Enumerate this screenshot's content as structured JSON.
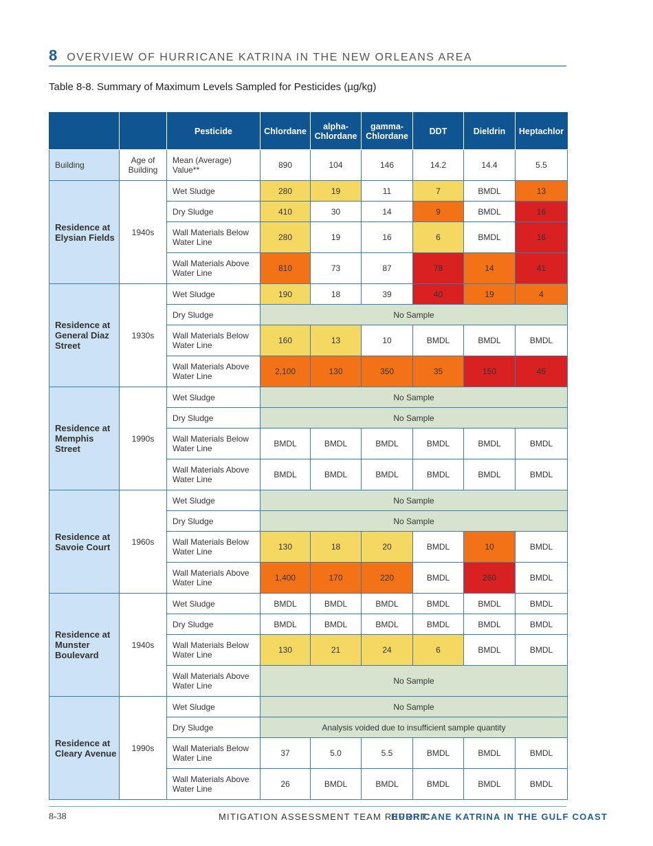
{
  "header": {
    "chapter": "8",
    "title": "OVERVIEW OF HURRICANE KATRINA IN THE NEW ORLEANS AREA"
  },
  "table_title": "Table 8-8. Summary of Maximum Levels Sampled for Pesticides (µg/kg)",
  "colors": {
    "y": "#f4d862",
    "o": "#f47216",
    "r": "#d92121",
    "w": "#ffffff",
    "n": "#d6e4cf",
    "header": "#0f5591",
    "site": "#cce2f5"
  },
  "columns": [
    "",
    "",
    "Pesticide",
    "Chlordane",
    "alpha-Chlordane",
    "gamma-Chlordane",
    "DDT",
    "Dieldrin",
    "Heptachlor"
  ],
  "mean_row": {
    "building": "Building",
    "age": "Age of Building",
    "label": "Mean (Average) Value**",
    "values": [
      "890",
      "104",
      "146",
      "14.2",
      "14.4",
      "5.5"
    ]
  },
  "groups": [
    {
      "site": "Residence at Elysian Fields",
      "age": "1940s",
      "rows": [
        {
          "p": "Wet Sludge",
          "t": false,
          "cells": [
            [
              "280",
              "y"
            ],
            [
              "19",
              "y"
            ],
            [
              "11",
              "w"
            ],
            [
              "7",
              "y"
            ],
            [
              "BMDL",
              "w"
            ],
            [
              "13",
              "o"
            ]
          ]
        },
        {
          "p": "Dry Sludge",
          "t": false,
          "cells": [
            [
              "410",
              "y"
            ],
            [
              "30",
              "w"
            ],
            [
              "14",
              "w"
            ],
            [
              "9",
              "o"
            ],
            [
              "BMDL",
              "w"
            ],
            [
              "16",
              "r"
            ]
          ]
        },
        {
          "p": "Wall Materials Below Water Line",
          "t": true,
          "cells": [
            [
              "280",
              "y"
            ],
            [
              "19",
              "w"
            ],
            [
              "16",
              "w"
            ],
            [
              "6",
              "y"
            ],
            [
              "BMDL",
              "w"
            ],
            [
              "16",
              "r"
            ]
          ]
        },
        {
          "p": "Wall Materials Above Water Line",
          "t": true,
          "cells": [
            [
              "810",
              "o"
            ],
            [
              "73",
              "w"
            ],
            [
              "87",
              "w"
            ],
            [
              "78",
              "r"
            ],
            [
              "14",
              "o"
            ],
            [
              "41",
              "r"
            ]
          ]
        }
      ]
    },
    {
      "site": "Residence at General Diaz Street",
      "age": "1930s",
      "rows": [
        {
          "p": "Wet Sludge",
          "t": false,
          "cells": [
            [
              "190",
              "y"
            ],
            [
              "18",
              "w"
            ],
            [
              "39",
              "w"
            ],
            [
              "40",
              "r"
            ],
            [
              "19",
              "o"
            ],
            [
              "4",
              "o"
            ]
          ]
        },
        {
          "p": "Dry Sludge",
          "t": false,
          "span": "No Sample"
        },
        {
          "p": "Wall Materials Below Water Line",
          "t": true,
          "cells": [
            [
              "160",
              "y"
            ],
            [
              "13",
              "y"
            ],
            [
              "10",
              "w"
            ],
            [
              "BMDL",
              "w"
            ],
            [
              "BMDL",
              "w"
            ],
            [
              "BMDL",
              "w"
            ]
          ]
        },
        {
          "p": "Wall Materials Above Water Line",
          "t": true,
          "cells": [
            [
              "2,100",
              "o"
            ],
            [
              "130",
              "o"
            ],
            [
              "350",
              "o"
            ],
            [
              "35",
              "o"
            ],
            [
              "150",
              "r"
            ],
            [
              "45",
              "r"
            ]
          ]
        }
      ]
    },
    {
      "site": "Residence at Memphis Street",
      "age": "1990s",
      "rows": [
        {
          "p": "Wet Sludge",
          "t": false,
          "span": "No Sample"
        },
        {
          "p": "Dry Sludge",
          "t": false,
          "span": "No Sample"
        },
        {
          "p": "Wall Materials Below Water Line",
          "t": true,
          "cells": [
            [
              "BMDL",
              "w"
            ],
            [
              "BMDL",
              "w"
            ],
            [
              "BMDL",
              "w"
            ],
            [
              "BMDL",
              "w"
            ],
            [
              "BMDL",
              "w"
            ],
            [
              "BMDL",
              "w"
            ]
          ]
        },
        {
          "p": "Wall Materials Above Water Line",
          "t": true,
          "cells": [
            [
              "BMDL",
              "w"
            ],
            [
              "BMDL",
              "w"
            ],
            [
              "BMDL",
              "w"
            ],
            [
              "BMDL",
              "w"
            ],
            [
              "BMDL",
              "w"
            ],
            [
              "BMDL",
              "w"
            ]
          ]
        }
      ]
    },
    {
      "site": "Residence at Savoie Court",
      "age": "1960s",
      "rows": [
        {
          "p": "Wet Sludge",
          "t": false,
          "span": "No Sample"
        },
        {
          "p": "Dry Sludge",
          "t": false,
          "span": "No Sample"
        },
        {
          "p": "Wall Materials Below Water Line",
          "t": true,
          "cells": [
            [
              "130",
              "y"
            ],
            [
              "18",
              "y"
            ],
            [
              "20",
              "y"
            ],
            [
              "BMDL",
              "w"
            ],
            [
              "10",
              "o"
            ],
            [
              "BMDL",
              "w"
            ]
          ]
        },
        {
          "p": "Wall Materials Above Water Line",
          "t": true,
          "cells": [
            [
              "1,400",
              "o"
            ],
            [
              "170",
              "o"
            ],
            [
              "220",
              "o"
            ],
            [
              "BMDL",
              "w"
            ],
            [
              "260",
              "r"
            ],
            [
              "BMDL",
              "w"
            ]
          ]
        }
      ]
    },
    {
      "site": "Residence at Munster Boulevard",
      "age": "1940s",
      "rows": [
        {
          "p": "Wet Sludge",
          "t": false,
          "cells": [
            [
              "BMDL",
              "w"
            ],
            [
              "BMDL",
              "w"
            ],
            [
              "BMDL",
              "w"
            ],
            [
              "BMDL",
              "w"
            ],
            [
              "BMDL",
              "w"
            ],
            [
              "BMDL",
              "w"
            ]
          ]
        },
        {
          "p": "Dry Sludge",
          "t": false,
          "cells": [
            [
              "BMDL",
              "w"
            ],
            [
              "BMDL",
              "w"
            ],
            [
              "BMDL",
              "w"
            ],
            [
              "BMDL",
              "w"
            ],
            [
              "BMDL",
              "w"
            ],
            [
              "BMDL",
              "w"
            ]
          ]
        },
        {
          "p": "Wall Materials Below Water Line",
          "t": true,
          "cells": [
            [
              "130",
              "y"
            ],
            [
              "21",
              "y"
            ],
            [
              "24",
              "y"
            ],
            [
              "6",
              "y"
            ],
            [
              "BMDL",
              "w"
            ],
            [
              "BMDL",
              "w"
            ]
          ]
        },
        {
          "p": "Wall Materials Above Water Line",
          "t": true,
          "span": "No Sample"
        }
      ]
    },
    {
      "site": "Residence at Cleary Avenue",
      "age": "1990s",
      "rows": [
        {
          "p": "Wet Sludge",
          "t": false,
          "span": "No Sample"
        },
        {
          "p": "Dry Sludge",
          "t": false,
          "span": "Analysis voided due to insufficient sample quantity"
        },
        {
          "p": "Wall Materials Below Water Line",
          "t": true,
          "cells": [
            [
              "37",
              "w"
            ],
            [
              "5.0",
              "w"
            ],
            [
              "5.5",
              "w"
            ],
            [
              "BMDL",
              "w"
            ],
            [
              "BMDL",
              "w"
            ],
            [
              "BMDL",
              "w"
            ]
          ]
        },
        {
          "p": "Wall Materials Above Water Line",
          "t": true,
          "cells": [
            [
              "26",
              "w"
            ],
            [
              "BMDL",
              "w"
            ],
            [
              "BMDL",
              "w"
            ],
            [
              "BMDL",
              "w"
            ],
            [
              "BMDL",
              "w"
            ],
            [
              "BMDL",
              "w"
            ]
          ]
        }
      ]
    }
  ],
  "footer": {
    "page": "8-38",
    "report": "MITIGATION ASSESSMENT TEAM REPORT",
    "series": "HURRICANE KATRINA IN THE GULF COAST"
  }
}
